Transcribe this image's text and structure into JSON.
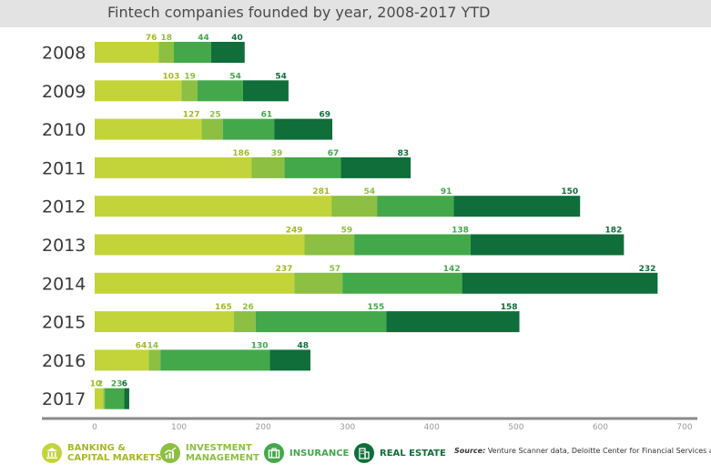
{
  "chart_data": {
    "type": "bar",
    "orientation": "horizontal",
    "stacked": true,
    "title": "Fintech companies founded by year, 2008-2017 YTD",
    "categories": [
      "2008",
      "2009",
      "2010",
      "2011",
      "2012",
      "2013",
      "2014",
      "2015",
      "2016",
      "2017"
    ],
    "series": [
      {
        "name": "BANKING & CAPITAL MARKETS",
        "color": "#c3d43a",
        "values": [
          76,
          103,
          127,
          186,
          281,
          249,
          237,
          165,
          64,
          10
        ]
      },
      {
        "name": "INVESTMENT MANAGEMENT",
        "color": "#8cbf42",
        "values": [
          18,
          19,
          25,
          39,
          54,
          59,
          57,
          26,
          14,
          2
        ]
      },
      {
        "name": "INSURANCE",
        "color": "#43a849",
        "values": [
          44,
          54,
          61,
          67,
          91,
          138,
          142,
          155,
          130,
          23
        ]
      },
      {
        "name": "REAL ESTATE",
        "color": "#0f6e3a",
        "values": [
          40,
          54,
          69,
          83,
          150,
          182,
          232,
          158,
          48,
          6
        ]
      }
    ],
    "xlim": [
      0,
      700
    ],
    "xticks": [
      "0",
      "100",
      "200",
      "300",
      "400",
      "500",
      "600",
      "700"
    ],
    "grid": false,
    "legend_position": "bottom",
    "label_colors": [
      "#a6b822",
      "#8cbf42",
      "#43a849",
      "#0f6e3a"
    ]
  },
  "legend": {
    "items": [
      {
        "label": "BANKING &\nCAPITAL MARKETS",
        "icon": "bank-icon"
      },
      {
        "label": "INVESTMENT\nMANAGEMENT",
        "icon": "growth-chart-icon"
      },
      {
        "label": "INSURANCE",
        "icon": "briefcase-icon"
      },
      {
        "label": "REAL ESTATE",
        "icon": "building-icon"
      }
    ]
  },
  "source": {
    "prefix": "Source:",
    "text": "Venture Scanner data, Deloitte Center for Financial Services analysis"
  }
}
